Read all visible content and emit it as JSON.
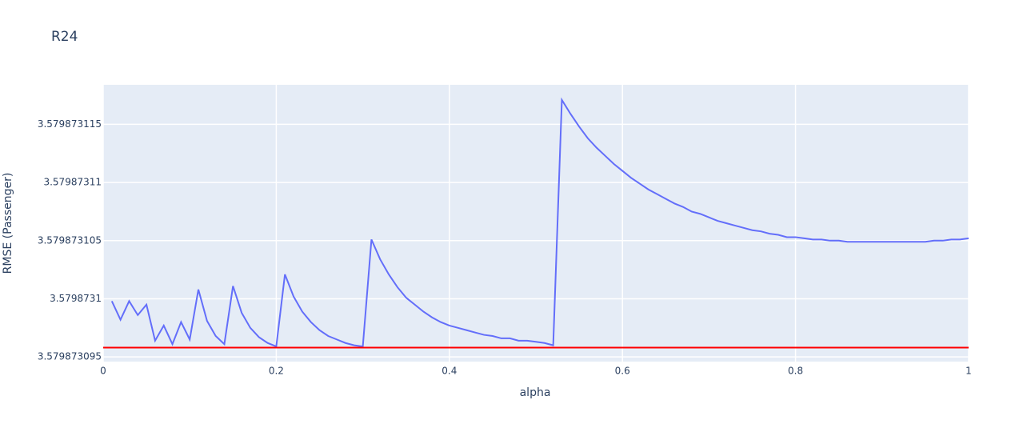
{
  "chart_data": {
    "type": "line",
    "title": "R24",
    "x_label": "alpha",
    "y_label": "RMSE (Passenger)",
    "xlim": [
      0,
      1
    ],
    "xticks": [
      0,
      0.2,
      0.4,
      0.6,
      0.8,
      1
    ],
    "ylim": [
      3.5798730946,
      3.5798731184
    ],
    "yticks": [
      3.579873095,
      3.5798731,
      3.579873105,
      3.57987311,
      3.579873115
    ],
    "grid": true,
    "series": [
      {
        "color": "#636efa",
        "x": [
          0.01,
          0.02,
          0.03,
          0.04,
          0.05,
          0.06,
          0.07,
          0.08,
          0.09,
          0.1,
          0.11,
          0.12,
          0.13,
          0.14,
          0.15,
          0.16,
          0.17,
          0.18,
          0.19,
          0.2,
          0.21,
          0.22,
          0.23,
          0.24,
          0.25,
          0.26,
          0.27,
          0.28,
          0.29,
          0.3,
          0.31,
          0.32,
          0.33,
          0.34,
          0.35,
          0.36,
          0.37,
          0.38,
          0.39,
          0.4,
          0.41,
          0.42,
          0.43,
          0.44,
          0.45,
          0.46,
          0.47,
          0.48,
          0.49,
          0.5,
          0.51,
          0.52,
          0.53,
          0.54,
          0.55,
          0.56,
          0.57,
          0.58,
          0.59,
          0.6,
          0.61,
          0.62,
          0.63,
          0.64,
          0.65,
          0.66,
          0.67,
          0.68,
          0.69,
          0.7,
          0.71,
          0.72,
          0.73,
          0.74,
          0.75,
          0.76,
          0.77,
          0.78,
          0.79,
          0.8,
          0.81,
          0.82,
          0.83,
          0.84,
          0.85,
          0.86,
          0.87,
          0.88,
          0.89,
          0.9,
          0.91,
          0.92,
          0.93,
          0.94,
          0.95,
          0.96,
          0.97,
          0.98,
          0.99,
          1
        ],
        "values": [
          3.5798730998,
          3.5798730982,
          3.5798730998,
          3.5798730986,
          3.5798730995,
          3.5798730964,
          3.5798730977,
          3.5798730961,
          3.579873098,
          3.5798730965,
          3.5798731008,
          3.5798730981,
          3.5798730968,
          3.5798730961,
          3.5798731011,
          3.5798730988,
          3.5798730975,
          3.5798730967,
          3.5798730962,
          3.5798730959,
          3.5798731021,
          3.5798731002,
          3.5798730989,
          3.579873098,
          3.5798730973,
          3.5798730968,
          3.5798730965,
          3.5798730962,
          3.579873096,
          3.5798730959,
          3.5798731051,
          3.5798731034,
          3.5798731021,
          3.579873101,
          3.5798731001,
          3.5798730995,
          3.5798730989,
          3.5798730984,
          3.579873098,
          3.5798730977,
          3.5798730975,
          3.5798730973,
          3.5798730971,
          3.5798730969,
          3.5798730968,
          3.5798730966,
          3.5798730966,
          3.5798730964,
          3.5798730964,
          3.5798730963,
          3.5798730962,
          3.579873096,
          3.5798731171,
          3.5798731159,
          3.5798731148,
          3.5798731138,
          3.579873113,
          3.5798731123,
          3.5798731116,
          3.579873111,
          3.5798731104,
          3.5798731099,
          3.5798731094,
          3.579873109,
          3.5798731086,
          3.5798731082,
          3.5798731079,
          3.5798731075,
          3.5798731073,
          3.579873107,
          3.5798731067,
          3.5798731065,
          3.5798731063,
          3.5798731061,
          3.5798731059,
          3.5798731058,
          3.5798731056,
          3.5798731055,
          3.5798731053,
          3.5798731053,
          3.5798731052,
          3.5798731051,
          3.5798731051,
          3.579873105,
          3.579873105,
          3.5798731049,
          3.5798731049,
          3.5798731049,
          3.5798731049,
          3.5798731049,
          3.5798731049,
          3.5798731049,
          3.5798731049,
          3.5798731049,
          3.5798731049,
          3.579873105,
          3.579873105,
          3.5798731051,
          3.5798731051,
          3.5798731052
        ]
      },
      {
        "color": "#ff0000",
        "x": [
          0,
          1
        ],
        "values": [
          3.5798730958,
          3.5798730958
        ]
      }
    ]
  }
}
